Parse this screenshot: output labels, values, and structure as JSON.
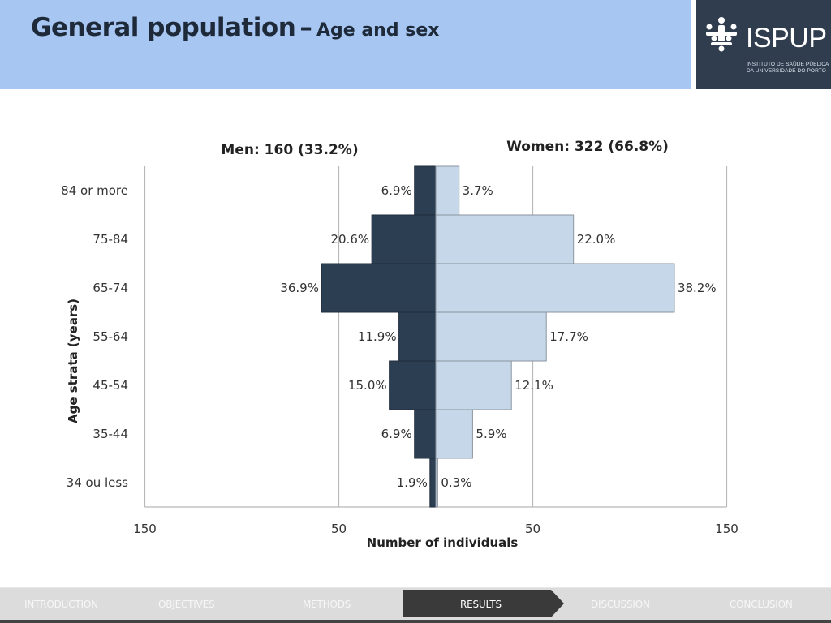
{
  "header": {
    "title_main": "General population",
    "title_dash": "–",
    "title_sub": "Age and sex"
  },
  "logo": {
    "word": "ISPUP",
    "line1": "INSTITUTO DE SAÚDE PÚBLICA",
    "line2": "DA UNIVERSIDADE DO PORTO"
  },
  "colors": {
    "header_band": "#a7c7f2",
    "logo_panel": "#2f3d4f",
    "men_bar": "#2c3e52",
    "women_bar": "#c5d7e8",
    "women_bar_border": "#8b95a1",
    "nav_active": "#3a3a3a"
  },
  "chart_data": {
    "type": "bar",
    "orientation": "horizontal-pyramid",
    "categories": [
      "84 or more",
      "75-84",
      "65-74",
      "55-64",
      "45-54",
      "35-44",
      "34 ou less"
    ],
    "series": [
      {
        "name": "Men: 160 (33.2%)",
        "values": [
          11,
          33,
          59,
          19,
          24,
          11,
          3
        ],
        "labels": [
          "6.9%",
          "20.6%",
          "36.9%",
          "11.9%",
          "15.0%",
          "6.9%",
          "1.9%"
        ]
      },
      {
        "name": "Women: 322 (66.8%)",
        "values": [
          12,
          71,
          123,
          57,
          39,
          19,
          1
        ],
        "labels": [
          "3.7%",
          "22.0%",
          "38.2%",
          "17.7%",
          "12.1%",
          "5.9%",
          "0.3%"
        ]
      }
    ],
    "x_ticks": [
      "150",
      "50",
      "50",
      "150"
    ],
    "xlabel": "Number of individuals",
    "ylabel": "Age strata (years)",
    "xlim": [
      -150,
      150
    ],
    "grid": true
  },
  "nav": {
    "items": [
      "INTRODUCTION",
      "OBJECTIVES",
      "METHODS",
      "RESULTS",
      "DISCUSSION",
      "CONCLUSION"
    ],
    "active": "RESULTS"
  }
}
